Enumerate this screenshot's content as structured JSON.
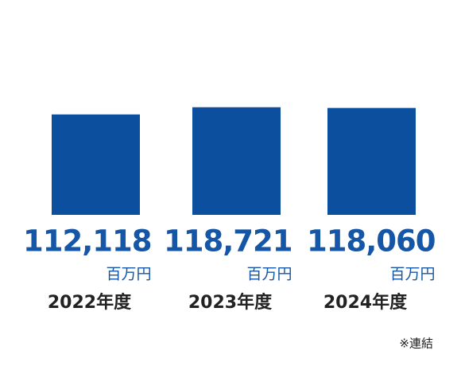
{
  "chart_data": {
    "type": "bar",
    "categories": [
      "2022年度",
      "2023年度",
      "2024年度"
    ],
    "values": [
      112118,
      118721,
      118060
    ],
    "value_labels": [
      "112,118",
      "118,721",
      "118,060"
    ],
    "unit": "百万円",
    "note": "※連結",
    "color": "#0c4f9e",
    "ylim": [
      20000,
      120000
    ]
  }
}
